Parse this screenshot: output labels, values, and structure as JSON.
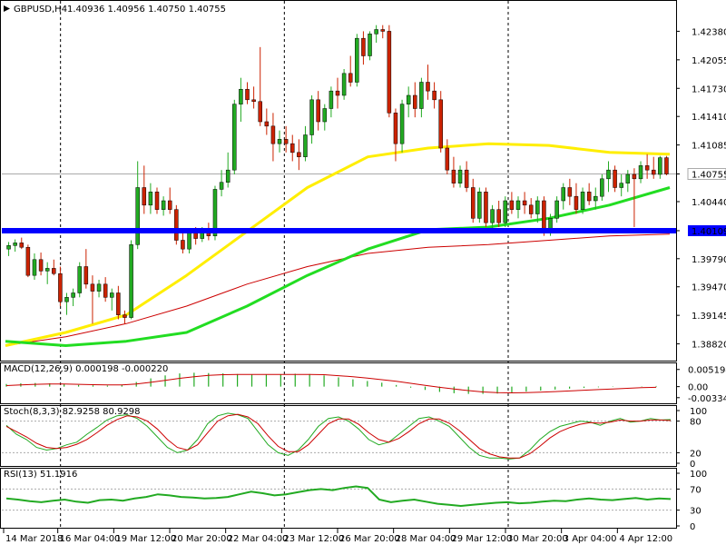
{
  "header": {
    "symbol": "GBPUSD,H4",
    "ohlc": "1.40936 1.40956 1.40750 1.40755"
  },
  "chart_data": [
    {
      "type": "candlestick",
      "title": "GBPUSD,H4",
      "ylim": [
        1.3865,
        1.4255
      ],
      "ticks": [
        "1.42380",
        "1.42055",
        "1.41730",
        "1.41410",
        "1.41085",
        "1.40755",
        "1.40440",
        "1.40109",
        "1.39790",
        "1.39470",
        "1.39145",
        "1.38820"
      ],
      "tick_values": [
        1.4238,
        1.42055,
        1.4173,
        1.4141,
        1.41085,
        1.40755,
        1.4044,
        1.40109,
        1.3979,
        1.3947,
        1.39145,
        1.3882
      ],
      "current_price": "1.40755",
      "current_price_value": 1.40755,
      "support_level": "1.40109",
      "support_value": 1.40109,
      "colors": {
        "bull": "#22aa22",
        "bear": "#cc2200",
        "ma_fast": "#ffee00",
        "ma_mid": "#22dd22",
        "ma_slow": "#cc0000",
        "support": "#0000ff"
      },
      "candles": [
        [
          1.399,
          1.3998,
          1.3982,
          1.3994
        ],
        [
          1.3994,
          1.4001,
          1.3987,
          1.3997
        ],
        [
          1.3997,
          1.4003,
          1.399,
          1.3992
        ],
        [
          1.3992,
          1.3995,
          1.3958,
          1.396
        ],
        [
          1.396,
          1.3985,
          1.3955,
          1.3978
        ],
        [
          1.3978,
          1.3986,
          1.396,
          1.3965
        ],
        [
          1.3965,
          1.3975,
          1.395,
          1.3968
        ],
        [
          1.3968,
          1.3978,
          1.396,
          1.3962
        ],
        [
          1.3962,
          1.397,
          1.3925,
          1.393
        ],
        [
          1.393,
          1.394,
          1.3915,
          1.3935
        ],
        [
          1.3935,
          1.3945,
          1.3925,
          1.394
        ],
        [
          1.394,
          1.3975,
          1.3935,
          1.397
        ],
        [
          1.397,
          1.399,
          1.3945,
          1.395
        ],
        [
          1.395,
          1.396,
          1.3905,
          1.3942
        ],
        [
          1.3942,
          1.3955,
          1.3935,
          1.395
        ],
        [
          1.395,
          1.3958,
          1.393,
          1.3935
        ],
        [
          1.3935,
          1.3945,
          1.392,
          1.394
        ],
        [
          1.394,
          1.3948,
          1.391,
          1.3915
        ],
        [
          1.3915,
          1.392,
          1.3905,
          1.3912
        ],
        [
          1.3912,
          1.4,
          1.391,
          1.3995
        ],
        [
          1.3995,
          1.409,
          1.399,
          1.406
        ],
        [
          1.406,
          1.4085,
          1.403,
          1.404
        ],
        [
          1.404,
          1.4065,
          1.403,
          1.4055
        ],
        [
          1.4055,
          1.406,
          1.403,
          1.4035
        ],
        [
          1.4035,
          1.405,
          1.4028,
          1.4045
        ],
        [
          1.4045,
          1.406,
          1.403,
          1.4035
        ],
        [
          1.4035,
          1.404,
          1.3995,
          1.4
        ],
        [
          1.4,
          1.401,
          1.3985,
          1.399
        ],
        [
          1.399,
          1.4012,
          1.3985,
          1.4008
        ],
        [
          1.4008,
          1.4015,
          1.3995,
          1.4002
        ],
        [
          1.4002,
          1.4015,
          1.3998,
          1.401
        ],
        [
          1.401,
          1.402,
          1.4,
          1.4005
        ],
        [
          1.4005,
          1.4062,
          1.4,
          1.4058
        ],
        [
          1.4058,
          1.408,
          1.405,
          1.4066
        ],
        [
          1.4066,
          1.41,
          1.406,
          1.408
        ],
        [
          1.408,
          1.416,
          1.4075,
          1.4155
        ],
        [
          1.4155,
          1.4185,
          1.4135,
          1.4172
        ],
        [
          1.4172,
          1.418,
          1.4155,
          1.416
        ],
        [
          1.416,
          1.4175,
          1.415,
          1.4158
        ],
        [
          1.4158,
          1.422,
          1.413,
          1.4135
        ],
        [
          1.4135,
          1.415,
          1.412,
          1.413
        ],
        [
          1.413,
          1.4145,
          1.409,
          1.411
        ],
        [
          1.411,
          1.4125,
          1.41,
          1.4115
        ],
        [
          1.4115,
          1.413,
          1.41,
          1.411
        ],
        [
          1.411,
          1.412,
          1.409,
          1.41
        ],
        [
          1.41,
          1.4115,
          1.408,
          1.4095
        ],
        [
          1.4095,
          1.413,
          1.409,
          1.412
        ],
        [
          1.412,
          1.4165,
          1.411,
          1.416
        ],
        [
          1.416,
          1.417,
          1.4125,
          1.4135
        ],
        [
          1.4135,
          1.4155,
          1.4125,
          1.415
        ],
        [
          1.415,
          1.4175,
          1.414,
          1.417
        ],
        [
          1.417,
          1.4185,
          1.415,
          1.4165
        ],
        [
          1.4165,
          1.4195,
          1.416,
          1.419
        ],
        [
          1.419,
          1.421,
          1.4175,
          1.418
        ],
        [
          1.418,
          1.4235,
          1.4175,
          1.423
        ],
        [
          1.423,
          1.4238,
          1.42,
          1.421
        ],
        [
          1.421,
          1.4238,
          1.4205,
          1.4235
        ],
        [
          1.4235,
          1.4245,
          1.4225,
          1.424
        ],
        [
          1.424,
          1.4245,
          1.423,
          1.4238
        ],
        [
          1.4238,
          1.4245,
          1.414,
          1.4145
        ],
        [
          1.4145,
          1.415,
          1.409,
          1.411
        ],
        [
          1.411,
          1.416,
          1.41,
          1.4155
        ],
        [
          1.4155,
          1.4175,
          1.414,
          1.4165
        ],
        [
          1.4165,
          1.418,
          1.414,
          1.415
        ],
        [
          1.415,
          1.4185,
          1.414,
          1.418
        ],
        [
          1.418,
          1.42,
          1.416,
          1.417
        ],
        [
          1.417,
          1.418,
          1.415,
          1.416
        ],
        [
          1.416,
          1.417,
          1.41,
          1.4105
        ],
        [
          1.4105,
          1.4115,
          1.4075,
          1.408
        ],
        [
          1.408,
          1.4095,
          1.406,
          1.4065
        ],
        [
          1.4065,
          1.4085,
          1.406,
          1.408
        ],
        [
          1.408,
          1.409,
          1.4055,
          1.406
        ],
        [
          1.406,
          1.407,
          1.402,
          1.4025
        ],
        [
          1.4025,
          1.406,
          1.402,
          1.4055
        ],
        [
          1.4055,
          1.406,
          1.4015,
          1.402
        ],
        [
          1.402,
          1.404,
          1.4012,
          1.4035
        ],
        [
          1.4035,
          1.4045,
          1.4015,
          1.402
        ],
        [
          1.402,
          1.405,
          1.4015,
          1.4045
        ],
        [
          1.4045,
          1.4055,
          1.403,
          1.4035
        ],
        [
          1.4035,
          1.405,
          1.4025,
          1.4045
        ],
        [
          1.4045,
          1.4055,
          1.403,
          1.404
        ],
        [
          1.404,
          1.4048,
          1.4025,
          1.403
        ],
        [
          1.403,
          1.405,
          1.402,
          1.4045
        ],
        [
          1.4045,
          1.405,
          1.4005,
          1.401
        ],
        [
          1.401,
          1.403,
          1.4005,
          1.4025
        ],
        [
          1.4025,
          1.405,
          1.402,
          1.4045
        ],
        [
          1.4045,
          1.4065,
          1.4035,
          1.406
        ],
        [
          1.406,
          1.407,
          1.404,
          1.405
        ],
        [
          1.405,
          1.4065,
          1.403,
          1.4035
        ],
        [
          1.4035,
          1.406,
          1.403,
          1.4055
        ],
        [
          1.4055,
          1.4065,
          1.404,
          1.4045
        ],
        [
          1.4045,
          1.406,
          1.4035,
          1.405
        ],
        [
          1.405,
          1.4075,
          1.4045,
          1.407
        ],
        [
          1.407,
          1.409,
          1.4055,
          1.408
        ],
        [
          1.408,
          1.4085,
          1.4055,
          1.406
        ],
        [
          1.406,
          1.4075,
          1.405,
          1.4065
        ],
        [
          1.4065,
          1.408,
          1.4055,
          1.4075
        ],
        [
          1.4075,
          1.4082,
          1.4015,
          1.407
        ],
        [
          1.407,
          1.409,
          1.4065,
          1.4085
        ],
        [
          1.4085,
          1.4098,
          1.407,
          1.408
        ],
        [
          1.408,
          1.4095,
          1.407,
          1.4075
        ],
        [
          1.4075,
          1.4096,
          1.407,
          1.4094
        ],
        [
          1.4094,
          1.4096,
          1.4074,
          1.40755
        ]
      ],
      "ma_fast": [
        1.388,
        1.3895,
        1.3915,
        1.396,
        1.401,
        1.406,
        1.4095,
        1.4105,
        1.411,
        1.4108,
        1.41,
        1.4098
      ],
      "ma_mid": [
        1.3885,
        1.388,
        1.3885,
        1.3895,
        1.3925,
        1.396,
        1.399,
        1.4012,
        1.4015,
        1.4025,
        1.404,
        1.406
      ],
      "ma_slow": [
        1.388,
        1.389,
        1.3905,
        1.3925,
        1.395,
        1.397,
        1.3985,
        1.3992,
        1.3995,
        1.4,
        1.4005,
        1.4007
      ]
    },
    {
      "type": "bar",
      "title": "MACD(12,26,9) 0.000198 -0.000220",
      "ticks": [
        "0.005194",
        "0.00",
        "-0.003343"
      ],
      "tick_values": [
        0.005194,
        0,
        -0.003343
      ],
      "ylim": [
        -0.0045,
        0.0065
      ],
      "histogram": [
        0.0008,
        0.001,
        0.0011,
        0.001,
        0.0008,
        0.0005,
        0.0004,
        0.0003,
        0.0006,
        0.0014,
        0.0025,
        0.0034,
        0.004,
        0.0042,
        0.0041,
        0.004,
        0.0038,
        0.0036,
        0.0036,
        0.0037,
        0.0039,
        0.0038,
        0.0034,
        0.0028,
        0.0022,
        0.0017,
        0.0012,
        0.0005,
        -0.0003,
        -0.001,
        -0.0016,
        -0.002,
        -0.0022,
        -0.0022,
        -0.0021,
        -0.0018,
        -0.0015,
        -0.0012,
        -0.0009,
        -0.0006,
        -0.0004,
        -0.0002,
        -0.0001,
        0.0,
        0.0001,
        0.0002
      ],
      "signal": [
        0.0003,
        0.0005,
        0.0007,
        0.0008,
        0.0008,
        0.0007,
        0.0006,
        0.0005,
        0.0005,
        0.0008,
        0.0013,
        0.0019,
        0.0025,
        0.003,
        0.0034,
        0.0036,
        0.0037,
        0.0037,
        0.0037,
        0.0037,
        0.0037,
        0.0037,
        0.0036,
        0.0033,
        0.003,
        0.0026,
        0.0021,
        0.0016,
        0.001,
        0.0004,
        -0.0002,
        -0.0007,
        -0.0012,
        -0.0016,
        -0.0018,
        -0.0019,
        -0.0018,
        -0.0017,
        -0.0015,
        -0.0013,
        -0.0011,
        -0.0009,
        -0.0007,
        -0.0005,
        -0.0003,
        -0.0002
      ]
    },
    {
      "type": "line",
      "title": "Stoch(8,3,3) 82.9258 80.9298",
      "ticks": [
        "100",
        "80",
        "20",
        "0"
      ],
      "tick_values": [
        100,
        80,
        20,
        0
      ],
      "ylim": [
        0,
        100
      ],
      "series": [
        {
          "name": "82.9258",
          "color": "#22aa22",
          "values": [
            72,
            55,
            45,
            30,
            25,
            28,
            35,
            40,
            55,
            68,
            82,
            90,
            92,
            85,
            70,
            50,
            30,
            20,
            25,
            45,
            75,
            90,
            95,
            92,
            85,
            60,
            35,
            20,
            15,
            25,
            45,
            70,
            85,
            88,
            80,
            65,
            45,
            35,
            40,
            55,
            70,
            85,
            88,
            80,
            70,
            50,
            30,
            15,
            10,
            10,
            8,
            10,
            25,
            45,
            60,
            70,
            75,
            80,
            78,
            72,
            80,
            85,
            78,
            80,
            85,
            82,
            83
          ]
        },
        {
          "name": "80.9298",
          "color": "#cc0000",
          "values": [
            70,
            60,
            50,
            38,
            30,
            28,
            30,
            36,
            45,
            58,
            72,
            83,
            90,
            88,
            80,
            65,
            45,
            30,
            25,
            35,
            58,
            80,
            90,
            93,
            88,
            75,
            52,
            32,
            22,
            22,
            35,
            55,
            75,
            84,
            84,
            74,
            58,
            45,
            40,
            47,
            60,
            75,
            84,
            84,
            76,
            62,
            45,
            28,
            18,
            12,
            10,
            10,
            18,
            32,
            48,
            60,
            68,
            74,
            77,
            76,
            78,
            82,
            80,
            80,
            82,
            82,
            81
          ]
        }
      ]
    },
    {
      "type": "line",
      "title": "RSI(13) 51.1916",
      "ticks": [
        "100",
        "70",
        "30",
        "0"
      ],
      "tick_values": [
        100,
        70,
        30,
        0
      ],
      "ylim": [
        0,
        100
      ],
      "series": [
        {
          "name": "51.1916",
          "color": "#22aa22",
          "values": [
            52,
            50,
            47,
            45,
            48,
            50,
            46,
            44,
            49,
            50,
            48,
            52,
            55,
            60,
            58,
            55,
            54,
            52,
            53,
            55,
            60,
            65,
            62,
            58,
            60,
            64,
            68,
            70,
            68,
            72,
            75,
            72,
            50,
            45,
            48,
            50,
            46,
            42,
            40,
            38,
            40,
            42,
            44,
            45,
            43,
            44,
            46,
            48,
            47,
            50,
            52,
            50,
            49,
            51,
            53,
            50,
            52,
            51
          ]
        }
      ]
    }
  ],
  "time_axis": [
    "14 Mar 2018",
    "16 Mar 04:00",
    "19 Mar 12:00",
    "20 Mar 20:00",
    "22 Mar 04:00",
    "23 Mar 12:00",
    "26 Mar 20:00",
    "28 Mar 04:00",
    "29 Mar 12:00",
    "30 Mar 20:00",
    "3 Apr 04:00",
    "4 Apr 12:00"
  ]
}
